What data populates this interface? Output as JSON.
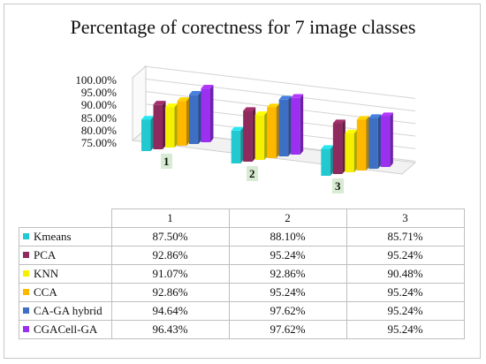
{
  "chart_data": {
    "type": "bar",
    "title": "Percentage of corectness for 7 image classes",
    "categories": [
      "1",
      "2",
      "3"
    ],
    "ylim": [
      75,
      100
    ],
    "yticks": [
      "100.00%",
      "95.00%",
      "90.00%",
      "85.00%",
      "80.00%",
      "75.00%"
    ],
    "legend_placement": "table-below",
    "grid": true,
    "series": [
      {
        "name": "Kmeans",
        "color": "#22c9d1",
        "values": [
          87.5,
          88.1,
          85.71
        ],
        "labels": [
          "87.50%",
          "88.10%",
          "85.71%"
        ]
      },
      {
        "name": "PCA",
        "color": "#8e2a5e",
        "values": [
          92.86,
          95.24,
          95.24
        ],
        "labels": [
          "92.86%",
          "95.24%",
          "95.24%"
        ]
      },
      {
        "name": "KNN",
        "color": "#f4f000",
        "values": [
          91.07,
          92.86,
          90.48
        ],
        "labels": [
          "91.07%",
          "92.86%",
          "90.48%"
        ]
      },
      {
        "name": "CCA",
        "color": "#ffb800",
        "values": [
          92.86,
          95.24,
          95.24
        ],
        "labels": [
          "92.86%",
          "95.24%",
          "95.24%"
        ]
      },
      {
        "name": "CA-GA hybrid",
        "color": "#3d6fc4",
        "values": [
          94.64,
          97.62,
          95.24
        ],
        "labels": [
          "94.64%",
          "97.62%",
          "95.24%"
        ]
      },
      {
        "name": "CGACell-GA",
        "color": "#9b30f0",
        "values": [
          96.43,
          97.62,
          95.24
        ],
        "labels": [
          "96.43%",
          "97.62%",
          "95.24%"
        ]
      }
    ]
  }
}
